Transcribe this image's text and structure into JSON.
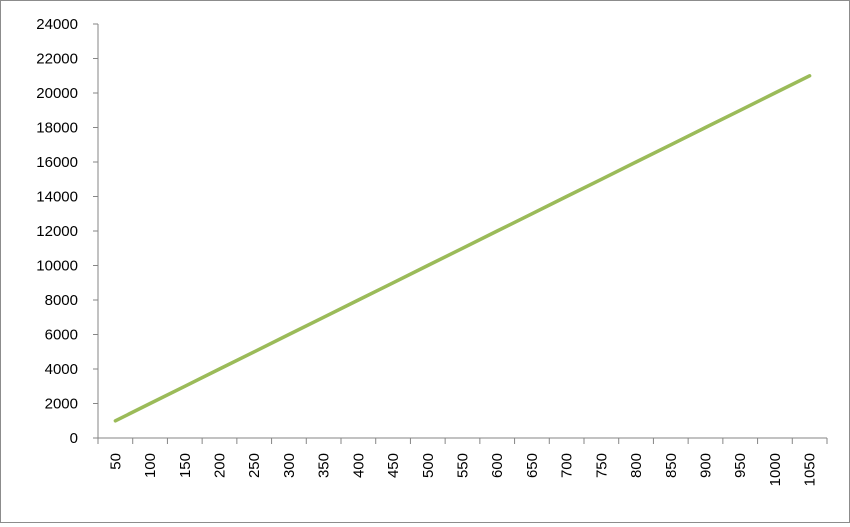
{
  "chart_data": {
    "type": "line",
    "title": "",
    "xlabel": "",
    "ylabel": "",
    "categories": [
      "50",
      "100",
      "150",
      "200",
      "250",
      "300",
      "350",
      "400",
      "450",
      "500",
      "550",
      "600",
      "650",
      "700",
      "750",
      "800",
      "850",
      "900",
      "950",
      "1000",
      "1050"
    ],
    "series": [
      {
        "values": [
          1000,
          2000,
          3000,
          4000,
          5000,
          6000,
          7000,
          8000,
          9000,
          10000,
          11000,
          12000,
          13000,
          14000,
          15000,
          16000,
          17000,
          18000,
          19000,
          20000,
          21000
        ]
      }
    ],
    "ylim": [
      0,
      24000
    ],
    "yticks": [
      0,
      2000,
      4000,
      6000,
      8000,
      10000,
      12000,
      14000,
      16000,
      18000,
      20000,
      22000,
      24000
    ],
    "grid": false,
    "legend": "none",
    "line_color": "#9BBB59",
    "axis_color": "#868686"
  }
}
